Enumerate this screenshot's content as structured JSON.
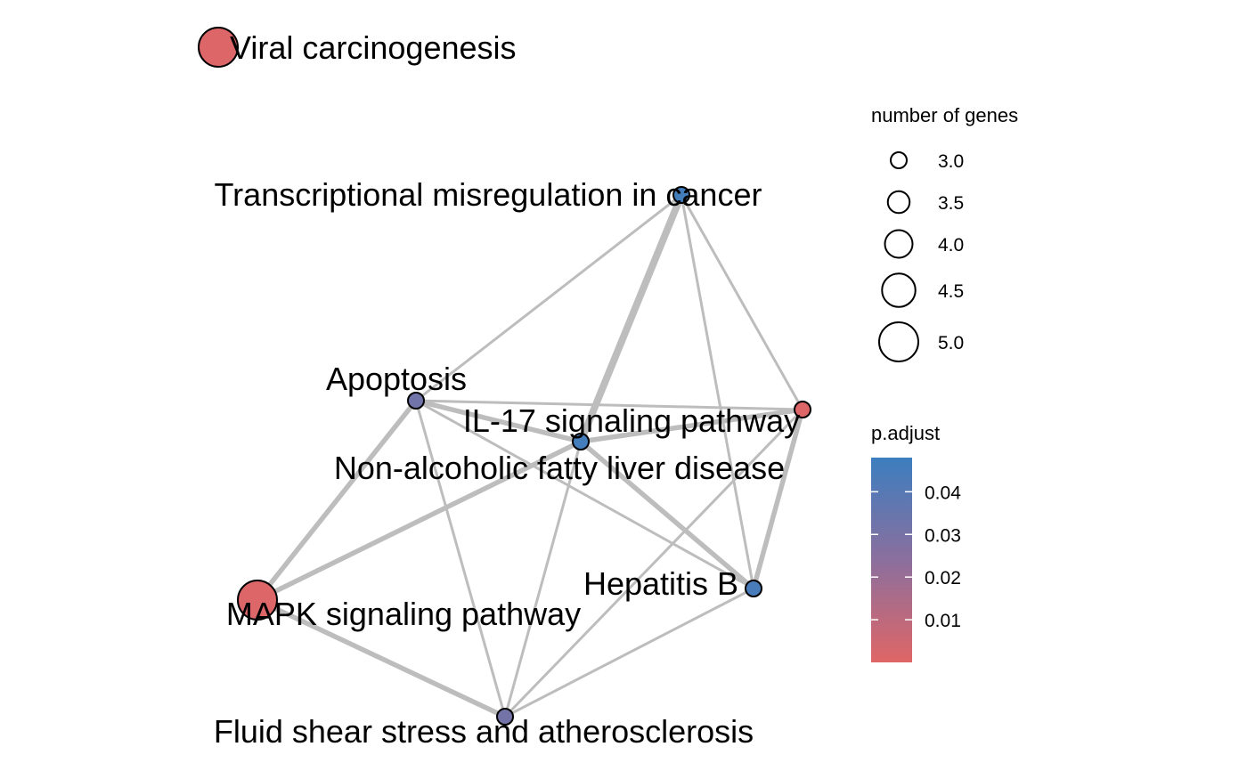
{
  "nodes": [
    {
      "id": "viral",
      "label": "Viral carcinogenesis",
      "genes": 5.0,
      "p_adjust": 0.001
    },
    {
      "id": "transcriptional",
      "label": "Transcriptional misregulation in cancer",
      "genes": 3.0,
      "p_adjust": 0.046
    },
    {
      "id": "apoptosis",
      "label": "Apoptosis",
      "genes": 3.0,
      "p_adjust": 0.032
    },
    {
      "id": "il17",
      "label": "IL-17 signaling pathway",
      "genes": 3.0,
      "p_adjust": 0.001
    },
    {
      "id": "nafld",
      "label": "Non-alcoholic fatty liver disease",
      "genes": 3.0,
      "p_adjust": 0.046
    },
    {
      "id": "hepatitisb",
      "label": "Hepatitis B",
      "genes": 3.0,
      "p_adjust": 0.044
    },
    {
      "id": "mapk",
      "label": "MAPK signaling pathway",
      "genes": 5.0,
      "p_adjust": 0.001
    },
    {
      "id": "fluid",
      "label": "Fluid shear stress and atherosclerosis",
      "genes": 3.0,
      "p_adjust": 0.031
    }
  ],
  "edges": [
    {
      "source": "transcriptional",
      "target": "apoptosis",
      "weight": 1
    },
    {
      "source": "transcriptional",
      "target": "nafld",
      "weight": 3
    },
    {
      "source": "transcriptional",
      "target": "il17",
      "weight": 1
    },
    {
      "source": "transcriptional",
      "target": "hepatitisb",
      "weight": 1
    },
    {
      "source": "apoptosis",
      "target": "il17",
      "weight": 1
    },
    {
      "source": "apoptosis",
      "target": "nafld",
      "weight": 2
    },
    {
      "source": "apoptosis",
      "target": "hepatitisb",
      "weight": 1
    },
    {
      "source": "apoptosis",
      "target": "mapk",
      "weight": 2
    },
    {
      "source": "apoptosis",
      "target": "fluid",
      "weight": 1
    },
    {
      "source": "nafld",
      "target": "il17",
      "weight": 2
    },
    {
      "source": "nafld",
      "target": "hepatitisb",
      "weight": 2
    },
    {
      "source": "nafld",
      "target": "mapk",
      "weight": 2
    },
    {
      "source": "nafld",
      "target": "fluid",
      "weight": 1
    },
    {
      "source": "il17",
      "target": "hepatitisb",
      "weight": 2
    },
    {
      "source": "il17",
      "target": "fluid",
      "weight": 1
    },
    {
      "source": "hepatitisb",
      "target": "fluid",
      "weight": 1
    },
    {
      "source": "mapk",
      "target": "fluid",
      "weight": 2
    }
  ],
  "legend": {
    "size": {
      "title": "number of genes",
      "items": [
        {
          "label": "3.0",
          "value": 3.0
        },
        {
          "label": "3.5",
          "value": 3.5
        },
        {
          "label": "4.0",
          "value": 4.0
        },
        {
          "label": "4.5",
          "value": 4.5
        },
        {
          "label": "5.0",
          "value": 5.0
        }
      ]
    },
    "color": {
      "title": "p.adjust",
      "low_color": "#E06666",
      "mid_color": "#8B6F9E",
      "high_color": "#3C7EBF",
      "range": [
        0.0,
        0.048
      ],
      "ticks": [
        {
          "label": "0.04",
          "value": 0.04
        },
        {
          "label": "0.03",
          "value": 0.03
        },
        {
          "label": "0.02",
          "value": 0.02
        },
        {
          "label": "0.01",
          "value": 0.01
        }
      ]
    }
  },
  "colors": {
    "edge": "#BDBDBD",
    "node_stroke": "#000000",
    "background": "#FFFFFF"
  }
}
